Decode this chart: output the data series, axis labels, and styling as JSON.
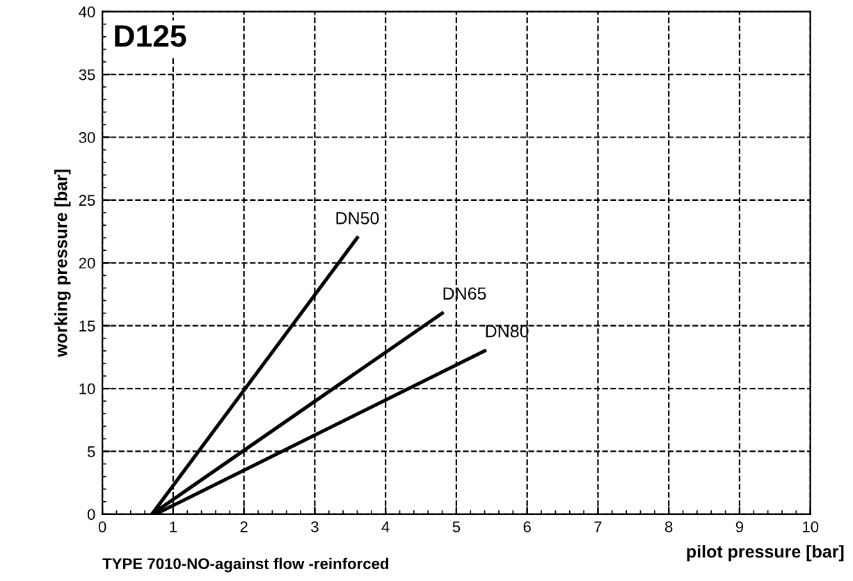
{
  "chart_data": {
    "type": "line",
    "xlabel": "pilot pressure [bar]",
    "ylabel": "working pressure [bar]",
    "annotations": [
      "D125",
      "TYPE 7010-NO-against flow -reinforced"
    ],
    "series": [
      {
        "name": "DN50",
        "color": "#000000",
        "x": [
          0.7,
          3.6
        ],
        "values": [
          0,
          22
        ]
      },
      {
        "name": "DN65",
        "color": "#000000",
        "x": [
          0.7,
          4.8
        ],
        "values": [
          0,
          16
        ]
      },
      {
        "name": "DN80",
        "color": "#000000",
        "x": [
          0.75,
          5.4
        ],
        "values": [
          0,
          13
        ]
      }
    ],
    "xlim": [
      0,
      10
    ],
    "ylim": [
      0,
      40
    ],
    "xticks": [
      0,
      1,
      2,
      3,
      4,
      5,
      6,
      7,
      8,
      9,
      10
    ],
    "yticks": [
      0,
      5,
      10,
      15,
      20,
      25,
      30,
      35,
      40
    ],
    "grid": true,
    "line_style": "solid",
    "marker": "none",
    "legend": false
  }
}
